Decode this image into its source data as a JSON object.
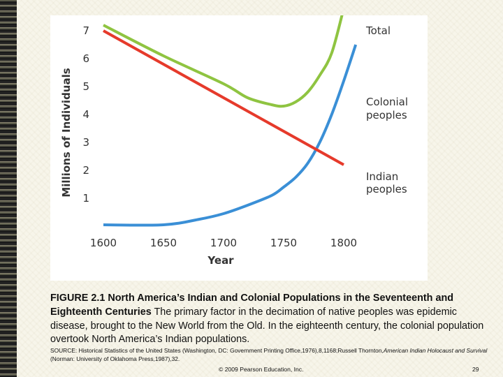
{
  "chart_data": {
    "type": "line",
    "xlabel": "Year",
    "ylabel": "Millions of Individuals",
    "xlim": [
      1600,
      1800
    ],
    "ylim": [
      0,
      7.5
    ],
    "x_ticks": [
      "1600",
      "1650",
      "1700",
      "1750",
      "1800"
    ],
    "y_ticks": [
      "1",
      "2",
      "3",
      "4",
      "5",
      "6",
      "7"
    ],
    "series": [
      {
        "name": "Total",
        "color": "#8fc441",
        "x": [
          1600,
          1650,
          1700,
          1720,
          1740,
          1750,
          1760,
          1770,
          1780,
          1790,
          1800
        ],
        "values": [
          7.2,
          6.1,
          5.1,
          4.6,
          4.35,
          4.3,
          4.45,
          4.8,
          5.4,
          6.2,
          7.8
        ]
      },
      {
        "name": "Colonial peoples",
        "color": "#3a8fd6",
        "x": [
          1600,
          1650,
          1680,
          1700,
          1720,
          1740,
          1750,
          1760,
          1770,
          1780,
          1790,
          1800,
          1810
        ],
        "values": [
          0.05,
          0.05,
          0.25,
          0.45,
          0.75,
          1.1,
          1.4,
          1.75,
          2.25,
          3.0,
          4.0,
          5.2,
          6.5
        ]
      },
      {
        "name": "Indian peoples",
        "color": "#e63a2b",
        "x": [
          1600,
          1650,
          1700,
          1750,
          1800
        ],
        "values": [
          7.0,
          5.8,
          4.6,
          3.4,
          2.2
        ]
      }
    ]
  },
  "series_labels": {
    "total": "Total",
    "colonial_line1": "Colonial",
    "colonial_line2": "peoples",
    "indian_line1": "Indian",
    "indian_line2": "peoples"
  },
  "caption": {
    "figure_label": "FIGURE 2.1 North America’s Indian and Colonial Populations in the Seventeenth and Eighteenth Centuries",
    "body": " The primary factor in the decimation of native peoples was epidemic disease, brought to the New World from the Old. In the eighteenth century, the colonial population overtook North America’s Indian populations."
  },
  "source": {
    "prefix": "SOURCE: Historical Statistics of the United States (Washington, DC: Government Printing Office,1976),8,1168;Russell Thornton,",
    "italic_title": "American Indian Holocaust and Survival",
    "suffix": " (Norman: University of Oklahoma Press,1987),32."
  },
  "footer": {
    "copyright": "© 2009 Pearson Education, Inc.",
    "page_number": "29"
  }
}
